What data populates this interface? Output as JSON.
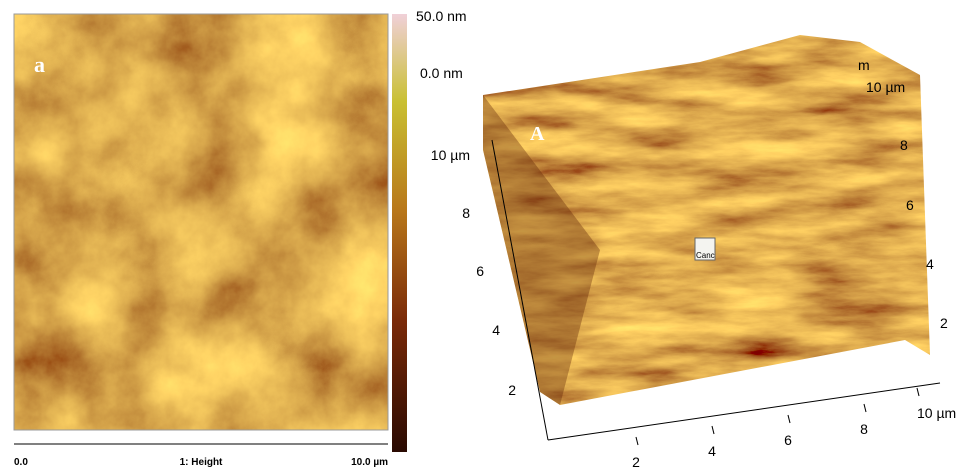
{
  "left_panel": {
    "label": "a",
    "colorbar": {
      "max_label": "50.0 nm",
      "min_label": "0.0 nm"
    },
    "x_axis": {
      "start": "0.0",
      "title": "1: Height",
      "end": "10.0 µm"
    }
  },
  "right_panel": {
    "label": "A",
    "popup": "Canc",
    "cut_label": "m",
    "left_axis": [
      "10 µm",
      "8",
      "6",
      "4",
      "2"
    ],
    "bottom_axis": [
      "2",
      "4",
      "6",
      "8",
      "10 µm"
    ],
    "right_axis": [
      "10 µm",
      "8",
      "6",
      "4",
      "2"
    ]
  }
}
